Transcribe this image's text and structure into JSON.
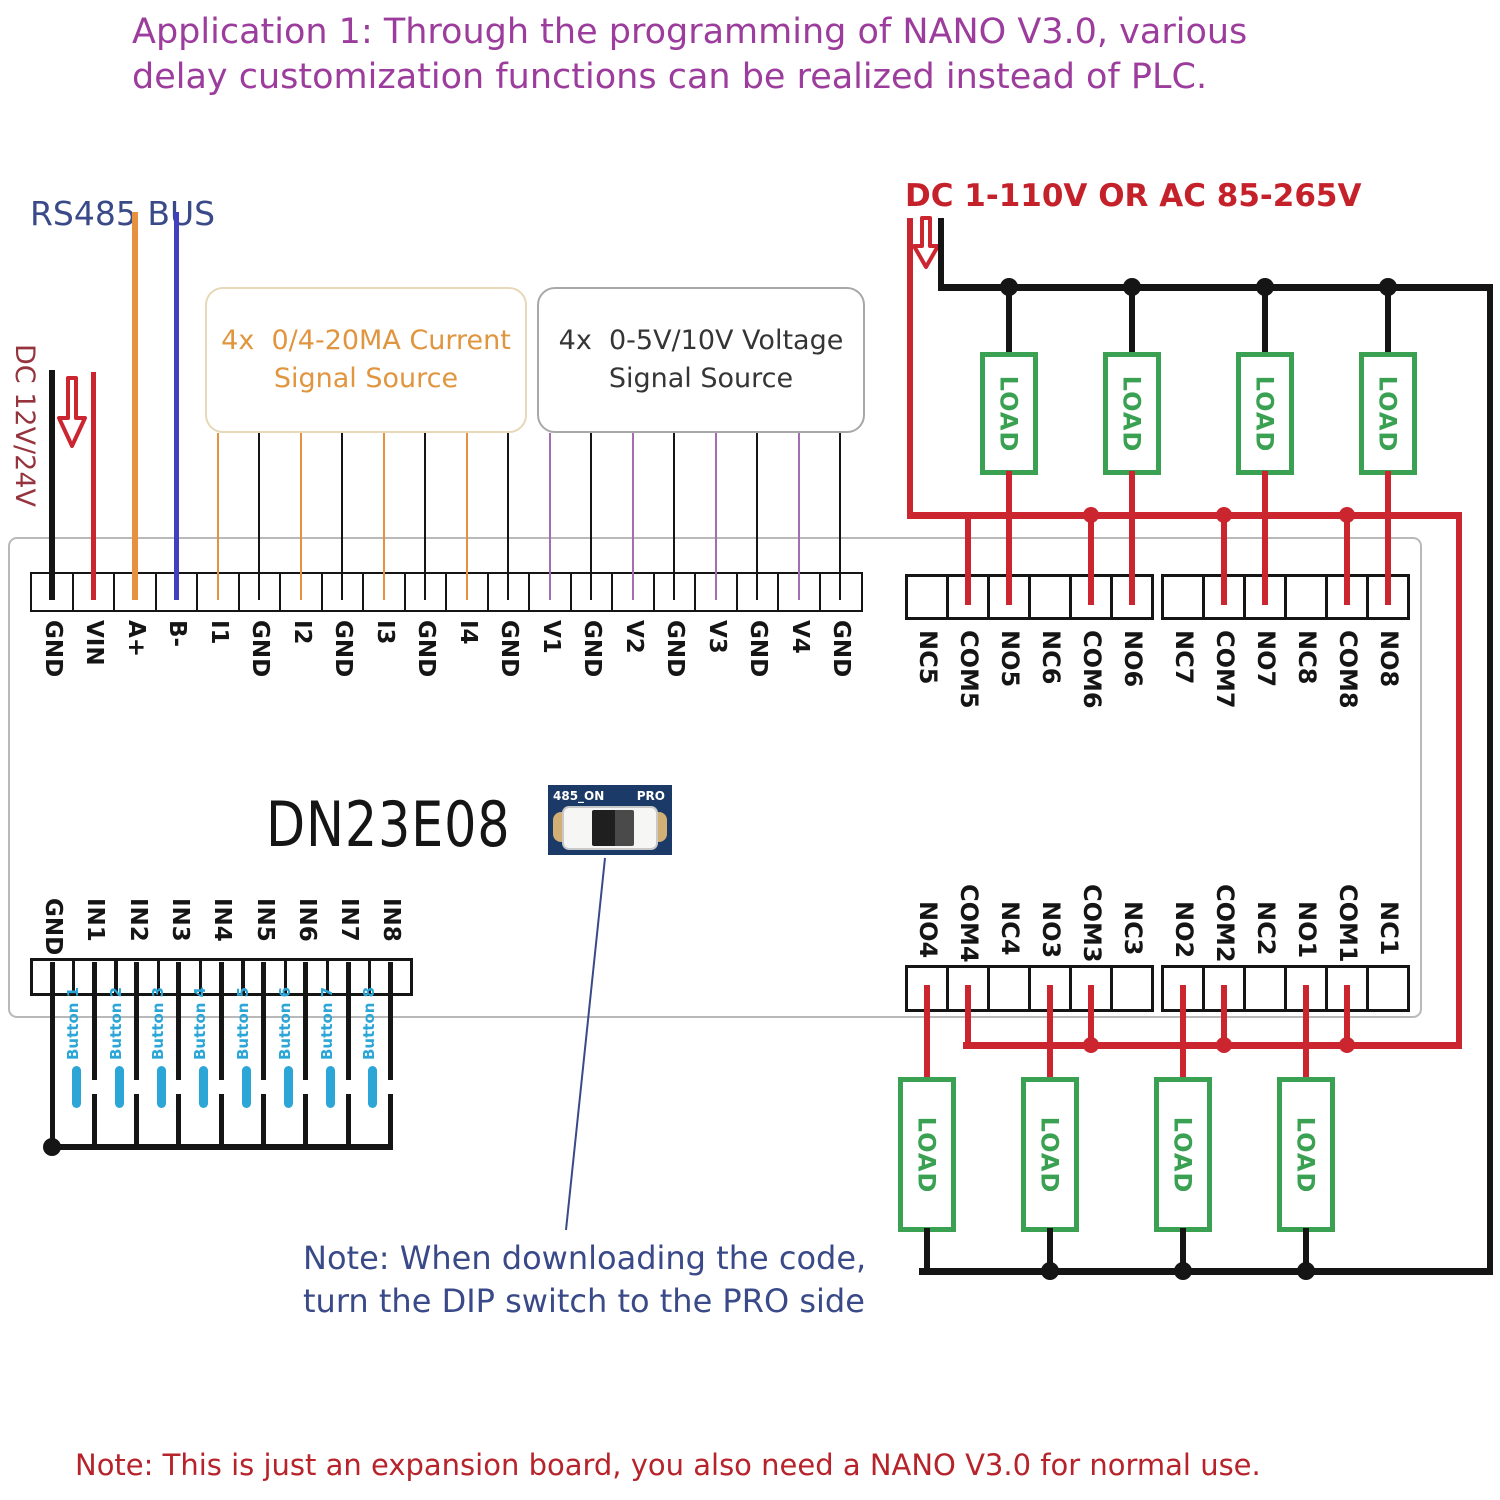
{
  "title": {
    "line1": "Application 1: Through the programming of NANO V3.0, various",
    "line2": "delay customization functions can be realized instead of PLC."
  },
  "labels": {
    "rs485_bus": "RS485 BUS",
    "dc_supply": "DC 12V/24V",
    "ac_supply": "DC 1-110V OR AC 85-265V",
    "board_model": "DN23E08",
    "dip_left": "485_ON",
    "dip_right": "PRO",
    "load": "LOAD"
  },
  "source_boxes": {
    "current": {
      "line1": "4x  0/4-20MA Current",
      "line2": "Signal Source"
    },
    "voltage": {
      "line1": "4x  0-5V/10V Voltage",
      "line2": "Signal Source"
    }
  },
  "terminals": {
    "power_signal_row": [
      "GND",
      "VIN",
      "A+",
      "B-",
      "I1",
      "GND",
      "I2",
      "GND",
      "I3",
      "GND",
      "I4",
      "GND",
      "V1",
      "GND",
      "V2",
      "GND",
      "V3",
      "GND",
      "V4",
      "GND"
    ],
    "relay_top_row": [
      "NC5",
      "COM5",
      "NO5",
      "NC6",
      "COM6",
      "NO6",
      "NC7",
      "COM7",
      "NO7",
      "NC8",
      "COM8",
      "NO8"
    ],
    "relay_bottom_row": [
      "NO4",
      "COM4",
      "NC4",
      "NO3",
      "COM3",
      "NC3",
      "NO2",
      "COM2",
      "NC2",
      "NO1",
      "COM1",
      "NC1"
    ],
    "input_row": [
      "GND",
      "IN1",
      "IN2",
      "IN3",
      "IN4",
      "IN5",
      "IN6",
      "IN7",
      "IN8"
    ]
  },
  "buttons": [
    "Button 1",
    "Button 2",
    "Button 3",
    "Button 4",
    "Button 5",
    "Button 6",
    "Button 7",
    "Button 8"
  ],
  "wiring": {
    "power_signal_wire_colors": [
      "wire_black",
      "wire_red",
      "wire_orange",
      "wire_blue",
      "wire_orange",
      "wire_black",
      "wire_orange",
      "wire_black",
      "wire_orange",
      "wire_black",
      "wire_orange",
      "wire_black",
      "wire_purple",
      "wire_black",
      "wire_purple",
      "wire_black",
      "wire_purple",
      "wire_black",
      "wire_purple",
      "wire_black"
    ]
  },
  "notes": {
    "dip_note_line1": "Note:  When downloading the code,",
    "dip_note_line2": "turn the DIP switch to the PRO side",
    "bottom_note": "Note: This is just an expansion board, you also need a NANO V3.0 for normal use."
  },
  "colors": {
    "title_purple": "#9c3c9c",
    "navy": "#3a4a88",
    "maroon": "#96343e",
    "warning_red": "#c5212b",
    "wire_red": "#cb2530",
    "wire_black": "#151515",
    "wire_orange": "#e59140",
    "wire_blue": "#4340bf",
    "wire_purple": "#a26db1",
    "load_green": "#3aa153",
    "button_cyan": "#2ba6d6",
    "note_red": "#b7232b",
    "current_box_text": "#e0953f",
    "voltage_box_text": "#353535",
    "board_gray": "#b9b9b9",
    "dip_navy": "#1c3a67",
    "dip_tan": "#d2b075"
  }
}
